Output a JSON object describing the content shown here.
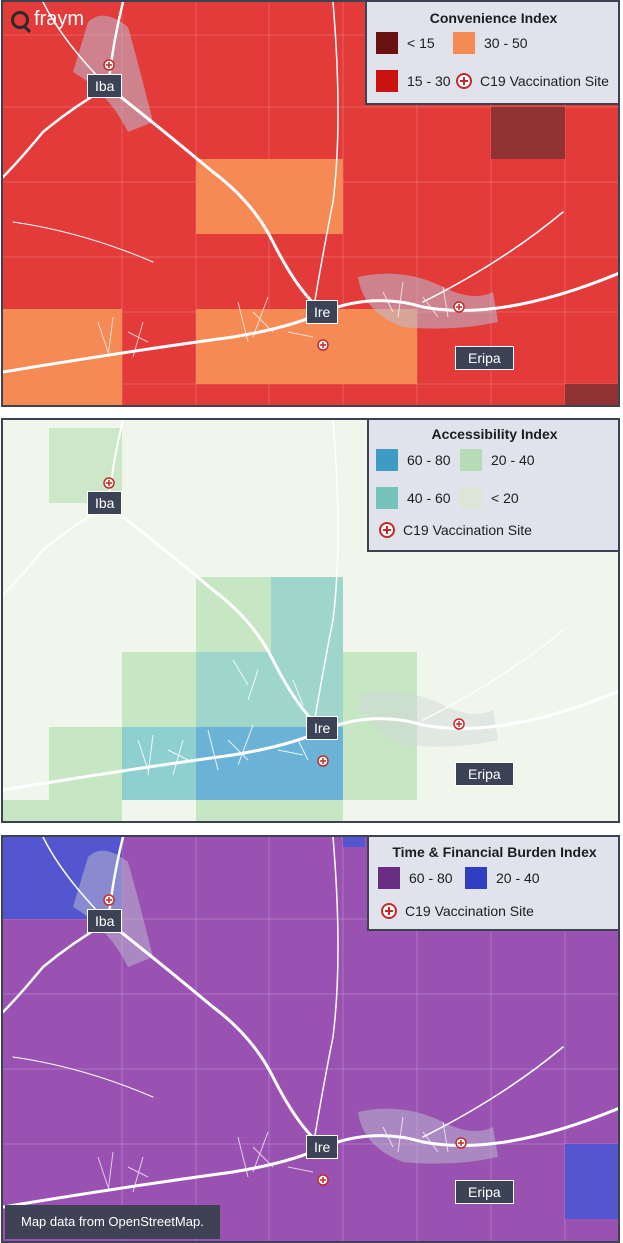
{
  "brand": {
    "logo_text": "fraym"
  },
  "places": {
    "iba": "Iba",
    "ire": "Ire",
    "eripa": "Eripa"
  },
  "panels": [
    {
      "legend": {
        "title": "Convenience Index",
        "items": [
          {
            "label": "< 15",
            "color": "#6b1111"
          },
          {
            "label": "30 - 50",
            "color": "#f58a55"
          },
          {
            "label": "15 - 30",
            "color": "#cc1111"
          }
        ],
        "vaccination_label": "C19 Vaccination Site"
      }
    },
    {
      "legend": {
        "title": "Accessibility Index",
        "items": [
          {
            "label": "60 - 80",
            "color": "#3e9bc4"
          },
          {
            "label": "20 - 40",
            "color": "#b5dcb6"
          },
          {
            "label": "40 - 60",
            "color": "#76c3bb"
          },
          {
            "label": "< 20",
            "color": "#dbe6d7"
          }
        ],
        "vaccination_label": "C19 Vaccination Site"
      }
    },
    {
      "legend": {
        "title": "Time & Financial Burden Index",
        "items": [
          {
            "label": "60 - 80",
            "color": "#6a2d86"
          },
          {
            "label": "20 - 40",
            "color": "#2f3fc2"
          }
        ],
        "vaccination_label": "C19 Vaccination Site"
      }
    }
  ],
  "attribution": "Map data from OpenStreetMap."
}
